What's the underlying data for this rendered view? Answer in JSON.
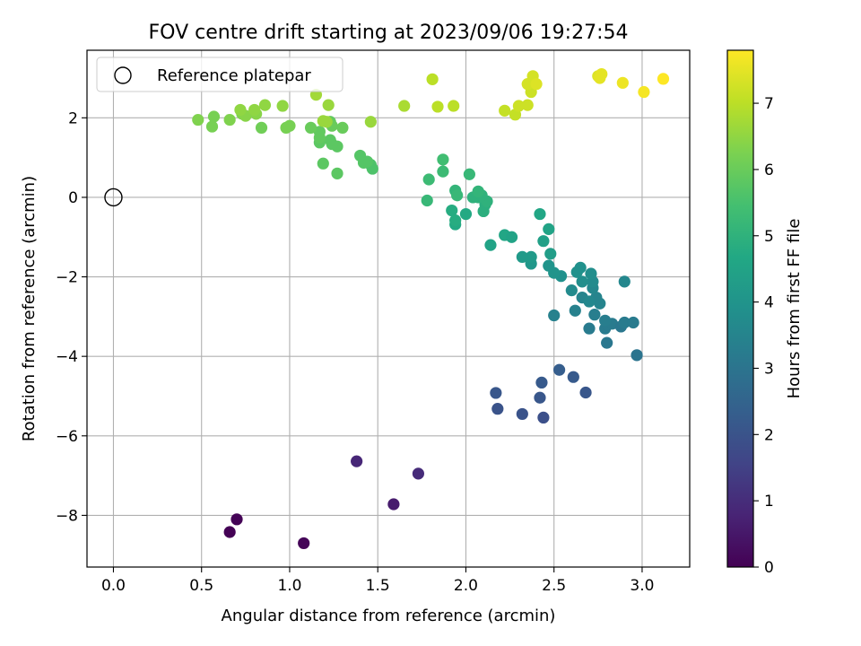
{
  "chart_data": {
    "type": "scatter",
    "title": "FOV centre drift starting at 2023/09/06 19:27:54",
    "xlabel": "Angular distance from reference (arcmin)",
    "ylabel": "Rotation from reference (arcmin)",
    "xlim": [
      -0.15,
      3.27
    ],
    "ylim": [
      -9.3,
      3.7
    ],
    "xticks": [
      0.0,
      0.5,
      1.0,
      1.5,
      2.0,
      2.5,
      3.0
    ],
    "xtick_labels": [
      "0.0",
      "0.5",
      "1.0",
      "1.5",
      "2.0",
      "2.5",
      "3.0"
    ],
    "yticks": [
      -8,
      -6,
      -4,
      -2,
      0,
      2
    ],
    "ytick_labels": [
      "−8",
      "−6",
      "−4",
      "−2",
      "0",
      "2"
    ],
    "grid": true,
    "legend": {
      "position": "top-left",
      "entries": [
        "Reference platepar"
      ]
    },
    "reference_point": {
      "x": 0.0,
      "y": 0.0
    },
    "colorbar": {
      "label": "Hours from first FF file",
      "colormap": "viridis",
      "range": [
        0,
        7.8
      ],
      "ticks": [
        0,
        1,
        2,
        3,
        4,
        5,
        6,
        7
      ],
      "tick_labels": [
        "0",
        "1",
        "2",
        "3",
        "4",
        "5",
        "6",
        "7"
      ]
    },
    "points": [
      {
        "x": 0.66,
        "y": -8.42,
        "c": 0.02
      },
      {
        "x": 0.7,
        "y": -8.1,
        "c": 0.05
      },
      {
        "x": 1.08,
        "y": -8.7,
        "c": 0.1
      },
      {
        "x": 1.38,
        "y": -6.64,
        "c": 0.85
      },
      {
        "x": 1.59,
        "y": -7.72,
        "c": 0.6
      },
      {
        "x": 1.73,
        "y": -6.95,
        "c": 0.95
      },
      {
        "x": 2.17,
        "y": -4.92,
        "c": 2.1
      },
      {
        "x": 2.18,
        "y": -5.32,
        "c": 2.0
      },
      {
        "x": 2.32,
        "y": -5.45,
        "c": 2.0
      },
      {
        "x": 2.42,
        "y": -5.04,
        "c": 2.1
      },
      {
        "x": 2.43,
        "y": -4.66,
        "c": 2.2
      },
      {
        "x": 2.44,
        "y": -5.54,
        "c": 1.9
      },
      {
        "x": 2.53,
        "y": -4.34,
        "c": 2.3
      },
      {
        "x": 2.61,
        "y": -4.52,
        "c": 2.2
      },
      {
        "x": 2.68,
        "y": -4.91,
        "c": 2.1
      },
      {
        "x": 2.97,
        "y": -3.97,
        "c": 3.0
      },
      {
        "x": 2.8,
        "y": -3.66,
        "c": 3.1
      },
      {
        "x": 2.7,
        "y": -3.3,
        "c": 3.2
      },
      {
        "x": 2.79,
        "y": -3.3,
        "c": 3.2
      },
      {
        "x": 2.8,
        "y": -3.2,
        "c": 3.2
      },
      {
        "x": 2.83,
        "y": -3.18,
        "c": 3.2
      },
      {
        "x": 2.88,
        "y": -3.25,
        "c": 3.1
      },
      {
        "x": 2.9,
        "y": -3.15,
        "c": 3.2
      },
      {
        "x": 2.95,
        "y": -3.15,
        "c": 3.2
      },
      {
        "x": 2.79,
        "y": -3.1,
        "c": 3.3
      },
      {
        "x": 2.5,
        "y": -2.97,
        "c": 3.4
      },
      {
        "x": 2.62,
        "y": -2.85,
        "c": 3.4
      },
      {
        "x": 2.73,
        "y": -2.95,
        "c": 3.3
      },
      {
        "x": 2.76,
        "y": -2.67,
        "c": 3.5
      },
      {
        "x": 2.74,
        "y": -2.52,
        "c": 3.5
      },
      {
        "x": 2.66,
        "y": -2.52,
        "c": 3.5
      },
      {
        "x": 2.7,
        "y": -2.62,
        "c": 3.6
      },
      {
        "x": 2.6,
        "y": -2.34,
        "c": 3.7
      },
      {
        "x": 2.72,
        "y": -2.28,
        "c": 3.6
      },
      {
        "x": 2.72,
        "y": -2.12,
        "c": 3.7
      },
      {
        "x": 2.66,
        "y": -2.12,
        "c": 3.8
      },
      {
        "x": 2.9,
        "y": -2.12,
        "c": 3.6
      },
      {
        "x": 2.71,
        "y": -1.92,
        "c": 3.8
      },
      {
        "x": 2.63,
        "y": -1.88,
        "c": 3.9
      },
      {
        "x": 2.65,
        "y": -1.77,
        "c": 3.9
      },
      {
        "x": 2.54,
        "y": -1.98,
        "c": 3.9
      },
      {
        "x": 2.5,
        "y": -1.9,
        "c": 4.0
      },
      {
        "x": 2.47,
        "y": -1.72,
        "c": 4.0
      },
      {
        "x": 2.37,
        "y": -1.67,
        "c": 4.1
      },
      {
        "x": 2.37,
        "y": -1.5,
        "c": 4.2
      },
      {
        "x": 2.32,
        "y": -1.5,
        "c": 4.2
      },
      {
        "x": 2.48,
        "y": -1.42,
        "c": 4.3
      },
      {
        "x": 2.44,
        "y": -1.1,
        "c": 4.4
      },
      {
        "x": 2.47,
        "y": -0.8,
        "c": 4.5
      },
      {
        "x": 2.42,
        "y": -0.42,
        "c": 4.6
      },
      {
        "x": 2.22,
        "y": -0.95,
        "c": 4.6
      },
      {
        "x": 2.26,
        "y": -1.0,
        "c": 4.5
      },
      {
        "x": 2.14,
        "y": -1.2,
        "c": 4.5
      },
      {
        "x": 1.94,
        "y": -0.68,
        "c": 4.7
      },
      {
        "x": 1.94,
        "y": -0.58,
        "c": 4.8
      },
      {
        "x": 1.92,
        "y": -0.33,
        "c": 4.8
      },
      {
        "x": 2.0,
        "y": -0.42,
        "c": 4.7
      },
      {
        "x": 2.1,
        "y": -0.35,
        "c": 4.9
      },
      {
        "x": 2.11,
        "y": -0.18,
        "c": 4.9
      },
      {
        "x": 2.12,
        "y": -0.1,
        "c": 5.0
      },
      {
        "x": 2.07,
        "y": 0.0,
        "c": 5.0
      },
      {
        "x": 2.04,
        "y": 0.0,
        "c": 5.0
      },
      {
        "x": 2.09,
        "y": 0.05,
        "c": 5.0
      },
      {
        "x": 2.07,
        "y": 0.15,
        "c": 5.1
      },
      {
        "x": 1.94,
        "y": 0.17,
        "c": 5.1
      },
      {
        "x": 1.95,
        "y": 0.05,
        "c": 5.2
      },
      {
        "x": 1.78,
        "y": -0.08,
        "c": 5.2
      },
      {
        "x": 2.02,
        "y": 0.58,
        "c": 5.2
      },
      {
        "x": 1.79,
        "y": 0.45,
        "c": 5.3
      },
      {
        "x": 1.87,
        "y": 0.65,
        "c": 5.3
      },
      {
        "x": 1.87,
        "y": 0.95,
        "c": 5.4
      },
      {
        "x": 1.47,
        "y": 0.72,
        "c": 5.6
      },
      {
        "x": 1.46,
        "y": 0.82,
        "c": 5.6
      },
      {
        "x": 1.44,
        "y": 0.9,
        "c": 5.7
      },
      {
        "x": 1.42,
        "y": 0.87,
        "c": 5.7
      },
      {
        "x": 1.4,
        "y": 1.05,
        "c": 5.7
      },
      {
        "x": 1.27,
        "y": 0.6,
        "c": 5.8
      },
      {
        "x": 1.19,
        "y": 0.85,
        "c": 5.8
      },
      {
        "x": 1.27,
        "y": 1.28,
        "c": 5.8
      },
      {
        "x": 1.24,
        "y": 1.34,
        "c": 5.8
      },
      {
        "x": 1.23,
        "y": 1.44,
        "c": 5.8
      },
      {
        "x": 1.17,
        "y": 1.38,
        "c": 5.8
      },
      {
        "x": 1.17,
        "y": 1.5,
        "c": 5.9
      },
      {
        "x": 1.17,
        "y": 1.65,
        "c": 5.9
      },
      {
        "x": 1.12,
        "y": 1.75,
        "c": 6.0
      },
      {
        "x": 1.23,
        "y": 1.9,
        "c": 5.9
      },
      {
        "x": 1.24,
        "y": 1.8,
        "c": 6.0
      },
      {
        "x": 1.3,
        "y": 1.75,
        "c": 6.0
      },
      {
        "x": 0.84,
        "y": 1.75,
        "c": 6.1
      },
      {
        "x": 0.98,
        "y": 1.75,
        "c": 6.2
      },
      {
        "x": 1.0,
        "y": 1.8,
        "c": 6.2
      },
      {
        "x": 0.56,
        "y": 1.78,
        "c": 6.2
      },
      {
        "x": 0.48,
        "y": 1.95,
        "c": 6.3
      },
      {
        "x": 0.57,
        "y": 2.03,
        "c": 6.2
      },
      {
        "x": 0.66,
        "y": 1.95,
        "c": 6.3
      },
      {
        "x": 0.73,
        "y": 2.1,
        "c": 6.3
      },
      {
        "x": 0.75,
        "y": 2.05,
        "c": 6.4
      },
      {
        "x": 0.81,
        "y": 2.1,
        "c": 6.4
      },
      {
        "x": 0.72,
        "y": 2.2,
        "c": 6.5
      },
      {
        "x": 0.8,
        "y": 2.2,
        "c": 6.5
      },
      {
        "x": 0.86,
        "y": 2.32,
        "c": 6.5
      },
      {
        "x": 0.96,
        "y": 2.3,
        "c": 6.5
      },
      {
        "x": 1.19,
        "y": 1.92,
        "c": 6.6
      },
      {
        "x": 1.21,
        "y": 1.9,
        "c": 6.6
      },
      {
        "x": 1.46,
        "y": 1.9,
        "c": 6.6
      },
      {
        "x": 1.22,
        "y": 2.32,
        "c": 6.6
      },
      {
        "x": 1.15,
        "y": 2.58,
        "c": 6.7
      },
      {
        "x": 1.65,
        "y": 2.3,
        "c": 6.8
      },
      {
        "x": 1.84,
        "y": 2.28,
        "c": 7.0
      },
      {
        "x": 1.93,
        "y": 2.3,
        "c": 7.0
      },
      {
        "x": 1.81,
        "y": 2.97,
        "c": 7.0
      },
      {
        "x": 2.22,
        "y": 2.18,
        "c": 7.1
      },
      {
        "x": 2.28,
        "y": 2.08,
        "c": 7.1
      },
      {
        "x": 2.3,
        "y": 2.3,
        "c": 7.2
      },
      {
        "x": 2.35,
        "y": 2.32,
        "c": 7.2
      },
      {
        "x": 2.37,
        "y": 2.65,
        "c": 7.2
      },
      {
        "x": 2.35,
        "y": 2.85,
        "c": 7.3
      },
      {
        "x": 2.38,
        "y": 2.9,
        "c": 7.3
      },
      {
        "x": 2.38,
        "y": 3.05,
        "c": 7.3
      },
      {
        "x": 2.4,
        "y": 2.85,
        "c": 7.4
      },
      {
        "x": 2.75,
        "y": 3.05,
        "c": 7.4
      },
      {
        "x": 2.77,
        "y": 3.1,
        "c": 7.5
      },
      {
        "x": 2.76,
        "y": 3.0,
        "c": 7.5
      },
      {
        "x": 2.89,
        "y": 2.88,
        "c": 7.6
      },
      {
        "x": 3.01,
        "y": 2.65,
        "c": 7.7
      },
      {
        "x": 3.12,
        "y": 2.98,
        "c": 7.8
      }
    ]
  }
}
